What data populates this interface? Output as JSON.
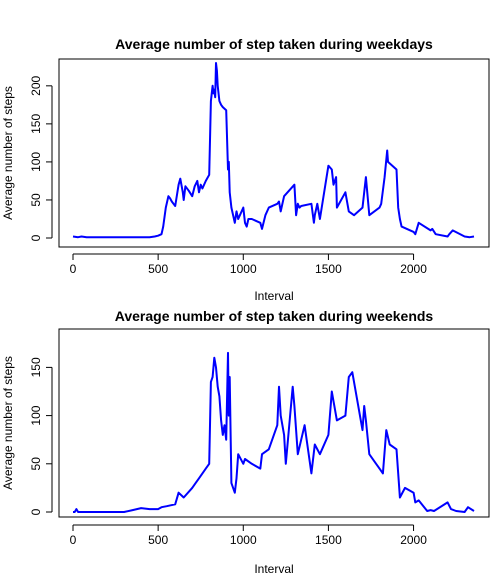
{
  "chart_data": [
    {
      "type": "line",
      "title": "Average number of step taken during weekdays",
      "xlabel": "Interval",
      "ylabel": "Average number of steps",
      "xlim": [
        0,
        2355
      ],
      "ylim": [
        0,
        230
      ],
      "xticks": [
        0,
        500,
        1000,
        1500,
        2000
      ],
      "yticks": [
        0,
        50,
        100,
        150,
        200
      ],
      "grid": false,
      "series": [
        {
          "color": "#0000ff",
          "x": [
            0,
            30,
            50,
            80,
            100,
            150,
            200,
            250,
            300,
            350,
            400,
            450,
            480,
            500,
            520,
            530,
            545,
            560,
            570,
            580,
            590,
            600,
            620,
            630,
            645,
            650,
            660,
            680,
            700,
            715,
            730,
            740,
            750,
            760,
            780,
            800,
            810,
            820,
            825,
            830,
            835,
            840,
            845,
            850,
            860,
            870,
            880,
            900,
            910,
            915,
            920,
            930,
            940,
            950,
            960,
            970,
            980,
            1000,
            1010,
            1020,
            1030,
            1050,
            1100,
            1110,
            1130,
            1150,
            1200,
            1210,
            1220,
            1240,
            1300,
            1310,
            1320,
            1330,
            1340,
            1400,
            1415,
            1420,
            1435,
            1450,
            1500,
            1520,
            1530,
            1545,
            1550,
            1600,
            1620,
            1650,
            1700,
            1710,
            1720,
            1740,
            1800,
            1810,
            1830,
            1845,
            1850,
            1900,
            1910,
            1920,
            1930,
            2000,
            2010,
            2030,
            2100,
            2110,
            2130,
            2200,
            2210,
            2230,
            2300,
            2330,
            2355
          ],
          "y": [
            2,
            1,
            2,
            1,
            1,
            1,
            1,
            1,
            1,
            1,
            1,
            1,
            2,
            3,
            5,
            15,
            40,
            55,
            52,
            48,
            45,
            42,
            70,
            78,
            60,
            50,
            68,
            62,
            55,
            68,
            75,
            60,
            70,
            65,
            75,
            83,
            180,
            200,
            190,
            195,
            185,
            230,
            220,
            200,
            180,
            175,
            172,
            168,
            90,
            100,
            60,
            40,
            30,
            20,
            35,
            25,
            30,
            40,
            20,
            15,
            25,
            25,
            20,
            12,
            30,
            40,
            45,
            48,
            35,
            55,
            70,
            30,
            45,
            40,
            42,
            45,
            20,
            30,
            45,
            25,
            95,
            90,
            70,
            80,
            40,
            60,
            35,
            30,
            40,
            60,
            80,
            30,
            40,
            45,
            80,
            115,
            100,
            90,
            40,
            25,
            15,
            8,
            5,
            20,
            10,
            12,
            5,
            2,
            5,
            10,
            2,
            1,
            2
          ]
        }
      ]
    },
    {
      "type": "line",
      "title": "Average number of step taken during weekends",
      "xlabel": "Interval",
      "ylabel": "Average number of steps",
      "xlim": [
        0,
        2355
      ],
      "ylim": [
        0,
        167
      ],
      "xticks": [
        0,
        500,
        1000,
        1500,
        2000
      ],
      "yticks": [
        0,
        50,
        100,
        150
      ],
      "grid": false,
      "series": [
        {
          "color": "#0000ff",
          "x": [
            0,
            10,
            20,
            30,
            50,
            100,
            150,
            200,
            250,
            300,
            350,
            400,
            450,
            500,
            520,
            550,
            600,
            620,
            650,
            700,
            720,
            740,
            760,
            780,
            800,
            810,
            820,
            830,
            840,
            850,
            860,
            870,
            880,
            890,
            900,
            910,
            915,
            920,
            930,
            950,
            960,
            970,
            1000,
            1010,
            1050,
            1100,
            1110,
            1150,
            1200,
            1210,
            1220,
            1240,
            1250,
            1290,
            1300,
            1320,
            1340,
            1360,
            1400,
            1420,
            1450,
            1500,
            1520,
            1550,
            1600,
            1620,
            1640,
            1700,
            1710,
            1720,
            1740,
            1780,
            1800,
            1820,
            1840,
            1860,
            1900,
            1920,
            1950,
            2000,
            2010,
            2030,
            2080,
            2100,
            2120,
            2200,
            2220,
            2250,
            2300,
            2320,
            2355
          ],
          "y": [
            0,
            0,
            3,
            0,
            0,
            0,
            0,
            0,
            0,
            0,
            2,
            4,
            3,
            3,
            5,
            6,
            8,
            20,
            15,
            25,
            30,
            35,
            40,
            45,
            50,
            135,
            140,
            160,
            150,
            130,
            120,
            95,
            80,
            90,
            75,
            165,
            100,
            140,
            30,
            20,
            35,
            60,
            50,
            55,
            50,
            45,
            60,
            65,
            90,
            130,
            100,
            80,
            50,
            130,
            110,
            60,
            75,
            90,
            40,
            70,
            60,
            80,
            125,
            95,
            100,
            140,
            145,
            85,
            110,
            95,
            60,
            50,
            45,
            40,
            85,
            70,
            65,
            15,
            25,
            20,
            10,
            12,
            1,
            2,
            1,
            10,
            3,
            1,
            0,
            5,
            1
          ]
        }
      ]
    }
  ]
}
